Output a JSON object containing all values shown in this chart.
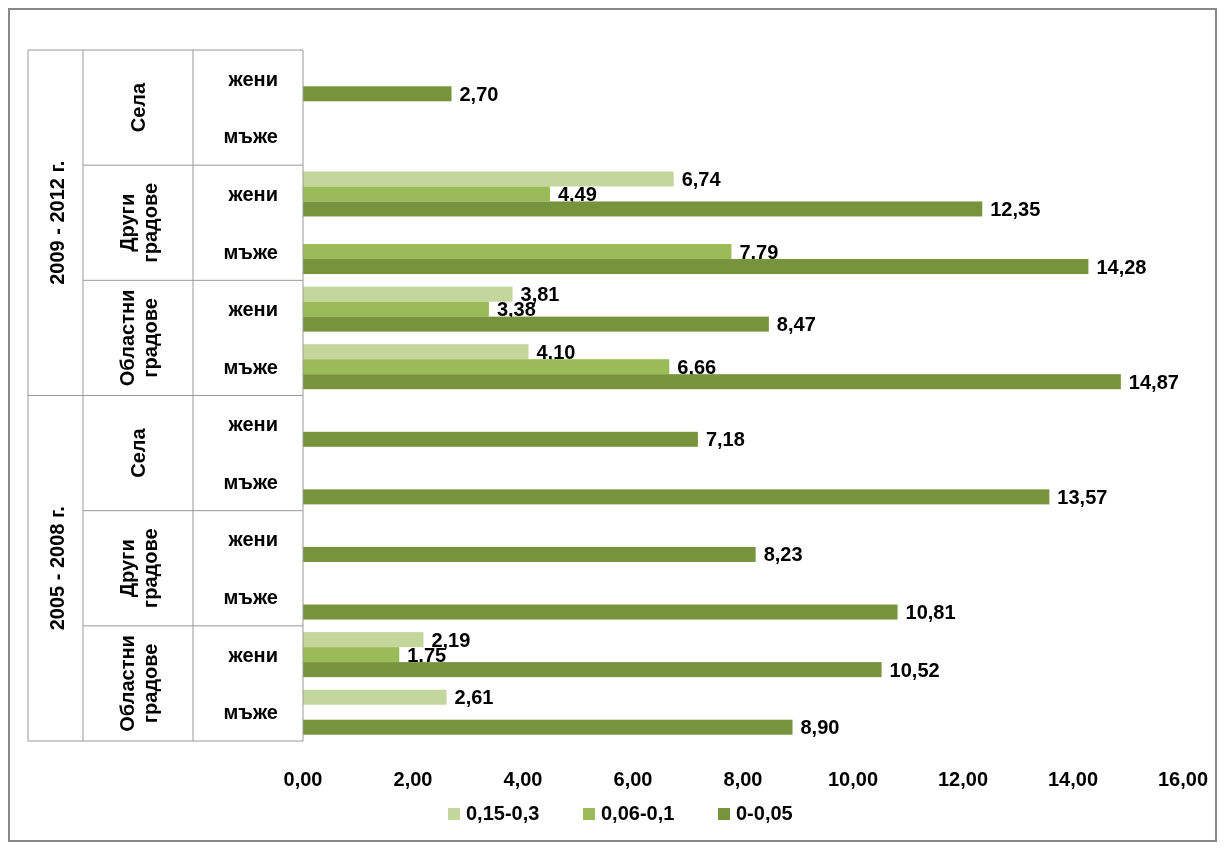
{
  "chart_data": {
    "type": "bar",
    "orientation": "horizontal",
    "categories": [
      "жени",
      "мъже",
      "жени",
      "мъже",
      "жени",
      "мъже",
      "жени",
      "мъже",
      "жени",
      "мъже",
      "жени",
      "мъже"
    ],
    "annotations": [
      "2009 - 2012 г.",
      "Села",
      "Други градове",
      "Областни градове",
      "2005 - 2008 г.",
      "Села",
      "Други градове",
      "Областни градове"
    ],
    "series": [
      {
        "name": "0,15-0,3",
        "color": "#c3d69b",
        "values": [
          null,
          null,
          6.74,
          null,
          3.81,
          4.1,
          null,
          null,
          null,
          null,
          2.19,
          2.61
        ],
        "value_labels": [
          null,
          null,
          "6,74",
          null,
          "3,81",
          "4,10",
          null,
          null,
          null,
          null,
          "2,19",
          "2,61"
        ]
      },
      {
        "name": "0,06-0,1",
        "color": "#9bbb59",
        "values": [
          null,
          null,
          4.49,
          7.79,
          3.38,
          6.66,
          null,
          null,
          null,
          null,
          1.75,
          null
        ],
        "value_labels": [
          null,
          null,
          "4,49",
          "7,79",
          "3,38",
          "6,66",
          null,
          null,
          null,
          null,
          "1,75",
          null
        ]
      },
      {
        "name": "0-0,05",
        "color": "#77933c",
        "values": [
          2.7,
          null,
          12.35,
          14.28,
          8.47,
          14.87,
          7.18,
          13.57,
          8.23,
          10.81,
          10.52,
          8.9
        ],
        "value_labels": [
          "2,70",
          null,
          "12,35",
          "14,28",
          "8,47",
          "14,87",
          "7,18",
          "13,57",
          "8,23",
          "10,81",
          "10,52",
          "8,90"
        ]
      }
    ],
    "xlim": [
      0,
      16
    ],
    "xticks": [
      {
        "value": 0,
        "label": "0,00"
      },
      {
        "value": 2,
        "label": "2,00"
      },
      {
        "value": 4,
        "label": "4,00"
      },
      {
        "value": 6,
        "label": "6,00"
      },
      {
        "value": 8,
        "label": "8,00"
      },
      {
        "value": 10,
        "label": "10,00"
      },
      {
        "value": 12,
        "label": "12,00"
      },
      {
        "value": 14,
        "label": "14,00"
      },
      {
        "value": 16,
        "label": "16,00"
      }
    ],
    "grid": false,
    "legend": "bottom"
  }
}
